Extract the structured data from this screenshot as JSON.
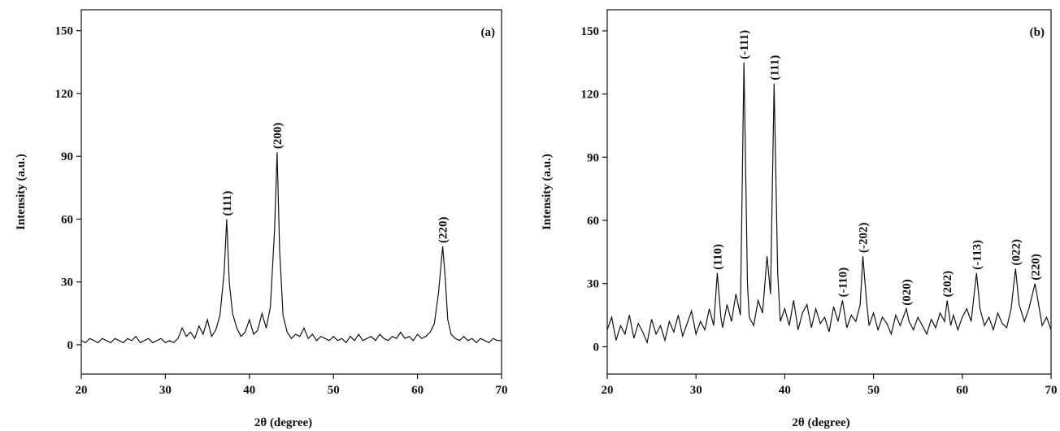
{
  "chart_data": [
    {
      "type": "line",
      "panel_label": "(a)",
      "x_label": "2θ (degree)",
      "y_label": "Intensity (a.u.)",
      "color": "#111111",
      "xlim": [
        20,
        70
      ],
      "ylim": [
        -14,
        160
      ],
      "xticks": [
        20,
        30,
        40,
        50,
        60,
        70
      ],
      "yticks": [
        0,
        30,
        60,
        90,
        120,
        150
      ],
      "x": [
        20,
        20.5,
        21,
        21.5,
        22,
        22.5,
        23,
        23.5,
        24,
        24.5,
        25,
        25.5,
        26,
        26.5,
        27,
        27.5,
        28,
        28.5,
        29,
        29.5,
        30,
        30.5,
        31,
        31.5,
        32,
        32.5,
        33,
        33.5,
        34,
        34.5,
        35,
        35.5,
        36,
        36.5,
        37,
        37.3,
        37.6,
        38,
        38.5,
        39,
        39.5,
        40,
        40.5,
        41,
        41.5,
        42,
        42.5,
        43,
        43.3,
        43.6,
        44,
        44.5,
        45,
        45.5,
        46,
        46.5,
        47,
        47.5,
        48,
        48.5,
        49,
        49.5,
        50,
        50.5,
        51,
        51.5,
        52,
        52.5,
        53,
        53.5,
        54,
        54.5,
        55,
        55.5,
        56,
        56.5,
        57,
        57.5,
        58,
        58.5,
        59,
        59.5,
        60,
        60.5,
        61,
        61.5,
        62,
        62.5,
        63,
        63.3,
        63.6,
        64,
        64.5,
        65,
        65.5,
        66,
        66.5,
        67,
        67.5,
        68,
        68.5,
        69,
        69.5,
        70
      ],
      "values": [
        2,
        1,
        3,
        2,
        1,
        3,
        2,
        1,
        3,
        2,
        1,
        3,
        2,
        4,
        1,
        2,
        3,
        1,
        2,
        3,
        1,
        2,
        1,
        3,
        8,
        4,
        6,
        3,
        9,
        5,
        12,
        4,
        7,
        14,
        35,
        60,
        30,
        15,
        8,
        4,
        6,
        12,
        5,
        7,
        15,
        8,
        18,
        55,
        92,
        45,
        14,
        6,
        3,
        5,
        4,
        8,
        3,
        5,
        2,
        4,
        3,
        2,
        4,
        2,
        3,
        1,
        4,
        2,
        5,
        2,
        3,
        4,
        2,
        5,
        3,
        2,
        4,
        3,
        6,
        3,
        4,
        2,
        5,
        3,
        4,
        6,
        10,
        25,
        47,
        32,
        12,
        5,
        3,
        2,
        4,
        2,
        3,
        1,
        3,
        2,
        1,
        3,
        2,
        2
      ],
      "annotations": [
        {
          "text": "(111)",
          "x": 37.3,
          "y": 60
        },
        {
          "text": "(200)",
          "x": 43.3,
          "y": 92
        },
        {
          "text": "(220)",
          "x": 63,
          "y": 47
        }
      ]
    },
    {
      "type": "line",
      "panel_label": "(b)",
      "x_label": "2θ (degree)",
      "y_label": "Intensity (a.u.)",
      "color": "#111111",
      "xlim": [
        20,
        70
      ],
      "ylim": [
        -13,
        160
      ],
      "xticks": [
        20,
        30,
        40,
        50,
        60,
        70
      ],
      "yticks": [
        0,
        30,
        60,
        90,
        120,
        150
      ],
      "x": [
        20,
        20.5,
        21,
        21.5,
        22,
        22.5,
        23,
        23.5,
        24,
        24.5,
        25,
        25.5,
        26,
        26.5,
        27,
        27.5,
        28,
        28.5,
        29,
        29.5,
        30,
        30.5,
        31,
        31.5,
        32,
        32.4,
        32.8,
        33,
        33.5,
        34,
        34.5,
        35,
        35.4,
        35.8,
        36,
        36.5,
        37,
        37.5,
        38,
        38.4,
        38.8,
        39.2,
        39.5,
        40,
        40.5,
        41,
        41.5,
        42,
        42.5,
        43,
        43.5,
        44,
        44.5,
        45,
        45.5,
        46,
        46.5,
        47,
        47.5,
        48,
        48.5,
        48.8,
        49.2,
        49.5,
        50,
        50.5,
        51,
        51.5,
        52,
        52.5,
        53,
        53.7,
        54,
        54.5,
        55,
        55.5,
        56,
        56.5,
        57,
        57.5,
        58,
        58.3,
        58.7,
        59,
        59.5,
        60,
        60.5,
        61,
        61.6,
        62,
        62.5,
        63,
        63.5,
        64,
        64.5,
        65,
        65.5,
        66,
        66.4,
        67,
        67.5,
        68.2,
        68.8,
        69,
        69.5,
        70
      ],
      "values": [
        8,
        14,
        3,
        10,
        6,
        15,
        4,
        11,
        7,
        2,
        13,
        6,
        10,
        3,
        12,
        7,
        15,
        5,
        11,
        17,
        6,
        12,
        8,
        18,
        10,
        35,
        14,
        9,
        20,
        12,
        25,
        15,
        135,
        30,
        14,
        10,
        22,
        16,
        43,
        25,
        125,
        35,
        12,
        18,
        10,
        22,
        8,
        16,
        20,
        9,
        18,
        11,
        14,
        7,
        19,
        12,
        22,
        9,
        15,
        12,
        20,
        43,
        22,
        10,
        16,
        8,
        14,
        11,
        6,
        15,
        10,
        18,
        12,
        8,
        14,
        10,
        6,
        13,
        9,
        16,
        12,
        22,
        10,
        15,
        8,
        14,
        18,
        12,
        35,
        18,
        10,
        14,
        8,
        16,
        11,
        9,
        18,
        37,
        20,
        12,
        18,
        30,
        15,
        10,
        14,
        8
      ],
      "annotations": [
        {
          "text": "(110)",
          "x": 32.4,
          "y": 35
        },
        {
          "text": "(-111)",
          "x": 35.4,
          "y": 135
        },
        {
          "text": "(111)",
          "x": 38.8,
          "y": 125
        },
        {
          "text": "(-110)",
          "x": 46.5,
          "y": 22
        },
        {
          "text": "(-202)",
          "x": 48.8,
          "y": 43
        },
        {
          "text": "(020)",
          "x": 53.7,
          "y": 18
        },
        {
          "text": "(202)",
          "x": 58.3,
          "y": 22
        },
        {
          "text": "(-113)",
          "x": 61.6,
          "y": 35
        },
        {
          "text": "(022)",
          "x": 66,
          "y": 37
        },
        {
          "text": "(220)",
          "x": 68.2,
          "y": 30
        }
      ]
    }
  ]
}
